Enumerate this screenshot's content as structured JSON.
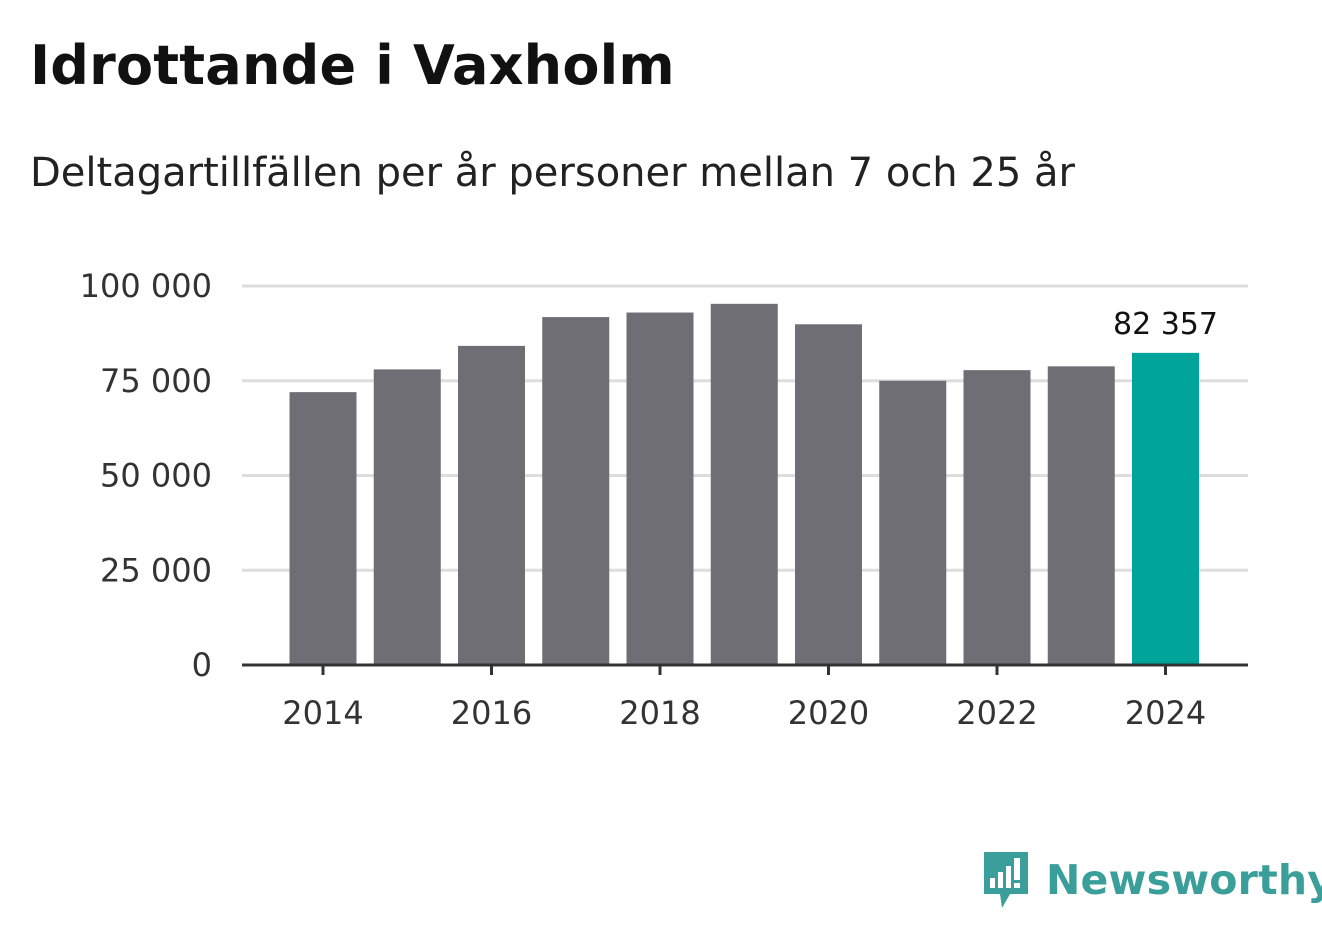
{
  "chart_data": {
    "type": "bar",
    "title": "Idrottande i Vaxholm",
    "subtitle": "Deltagartillfällen per år personer mellan 7 och 25 år",
    "categories": [
      "2014",
      "2015",
      "2016",
      "2017",
      "2018",
      "2019",
      "2020",
      "2021",
      "2022",
      "2023",
      "2024"
    ],
    "values": [
      72000,
      78000,
      84200,
      91800,
      93000,
      95300,
      89900,
      75000,
      77800,
      78800,
      82357
    ],
    "x_tick_labels": [
      "2014",
      "2016",
      "2018",
      "2020",
      "2022",
      "2024"
    ],
    "y_ticks": [
      0,
      25000,
      50000,
      75000,
      100000
    ],
    "y_tick_labels": [
      "0",
      "25 000",
      "50 000",
      "75 000",
      "100 000"
    ],
    "ylim": [
      0,
      100000
    ],
    "highlight_index": 10,
    "highlight_label": "82 357",
    "xlabel": "",
    "ylabel": "",
    "grid": true
  },
  "colors": {
    "bar": "#6f6e74",
    "highlight": "#00a49a",
    "grid": "#dddddd",
    "axis": "#333333",
    "brand": "#3a9f9a"
  },
  "brand": {
    "name": "Newsworthy",
    "icon": "newsworthy-logo-icon"
  }
}
